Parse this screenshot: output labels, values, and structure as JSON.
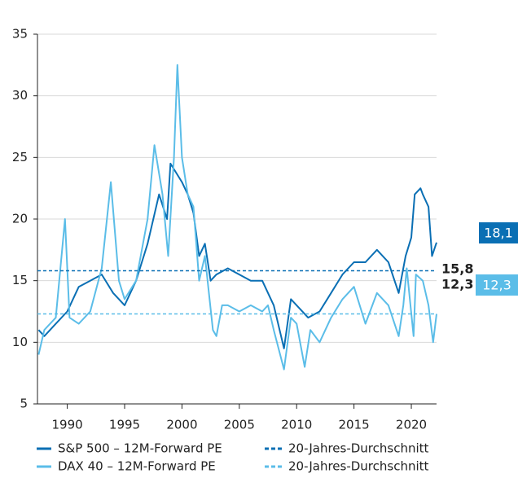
{
  "chart_data": {
    "type": "line",
    "xlim": [
      1987.4,
      2022.2
    ],
    "xticks": [
      1990,
      1995,
      2000,
      2005,
      2010,
      2015,
      2020
    ],
    "ylim": [
      5,
      35
    ],
    "yticks": [
      5,
      10,
      15,
      20,
      25,
      30,
      35
    ],
    "grid": true,
    "series": [
      {
        "name": "S&P 500 – 12M-Forward PE",
        "color": "#0a6fb4",
        "end_label": "18,1",
        "x": [
          1987.5,
          1988,
          1989,
          1990,
          1991,
          1992,
          1993,
          1994,
          1995,
          1996,
          1997,
          1998,
          1998.7,
          1999,
          2000,
          2000.5,
          2001,
          2001.5,
          2002,
          2002.5,
          2003,
          2004,
          2005,
          2006,
          2007,
          2008,
          2008.9,
          2009.5,
          2010,
          2011,
          2012,
          2013,
          2014,
          2015,
          2016,
          2017,
          2018,
          2018.9,
          2019.5,
          2020,
          2020.3,
          2020.8,
          2021,
          2021.5,
          2021.8,
          2022.2
        ],
        "values": [
          11,
          10.5,
          11.5,
          12.5,
          14.5,
          15,
          15.5,
          14,
          13,
          15,
          18,
          22,
          20,
          24.5,
          23,
          22,
          20.5,
          17,
          18,
          15,
          15.5,
          16,
          15.5,
          15,
          15,
          13,
          9.5,
          13.5,
          13,
          12,
          12.5,
          14,
          15.5,
          16.5,
          16.5,
          17.5,
          16.5,
          14,
          17,
          18.5,
          22,
          22.5,
          22,
          21,
          17,
          18.1
        ]
      },
      {
        "name": "DAX 40 – 12M-Forward PE",
        "color": "#5bbde8",
        "end_label": "12,3",
        "x": [
          1987.5,
          1988,
          1989,
          1989.8,
          1990.2,
          1991,
          1992,
          1993,
          1993.8,
          1994.5,
          1995,
          1996,
          1997,
          1997.6,
          1998.3,
          1998.8,
          1999.3,
          1999.6,
          2000,
          2000.5,
          2001,
          2001.5,
          2002,
          2002.7,
          2003,
          2003.5,
          2004,
          2005,
          2006,
          2007,
          2007.5,
          2008,
          2008.9,
          2009.5,
          2010,
          2010.7,
          2011.2,
          2012,
          2013,
          2014,
          2015,
          2016,
          2017,
          2018,
          2018.9,
          2019.3,
          2019.6,
          2020.2,
          2020.4,
          2021,
          2021.5,
          2021.9,
          2022.2
        ],
        "values": [
          9,
          11,
          12,
          20,
          12,
          11.5,
          12.5,
          16,
          23,
          15,
          13.5,
          15,
          20,
          26,
          22,
          17,
          25,
          32.5,
          25,
          22,
          21,
          15,
          17,
          11,
          10.5,
          13,
          13,
          12.5,
          13,
          12.5,
          13,
          11,
          7.8,
          12,
          11.5,
          8,
          11,
          10,
          12,
          13.5,
          14.5,
          11.5,
          14,
          13,
          10.5,
          13,
          16,
          10.5,
          15.5,
          15,
          13,
          10,
          12.3
        ]
      }
    ],
    "averages": [
      {
        "name": "20-Jahres-Durchschnitt",
        "color": "#0a6fb4",
        "value": 15.8,
        "label": "15,8"
      },
      {
        "name": "20-Jahres-Durchschnitt",
        "color": "#5bbde8",
        "value": 12.3,
        "label": "12,3"
      }
    ]
  }
}
